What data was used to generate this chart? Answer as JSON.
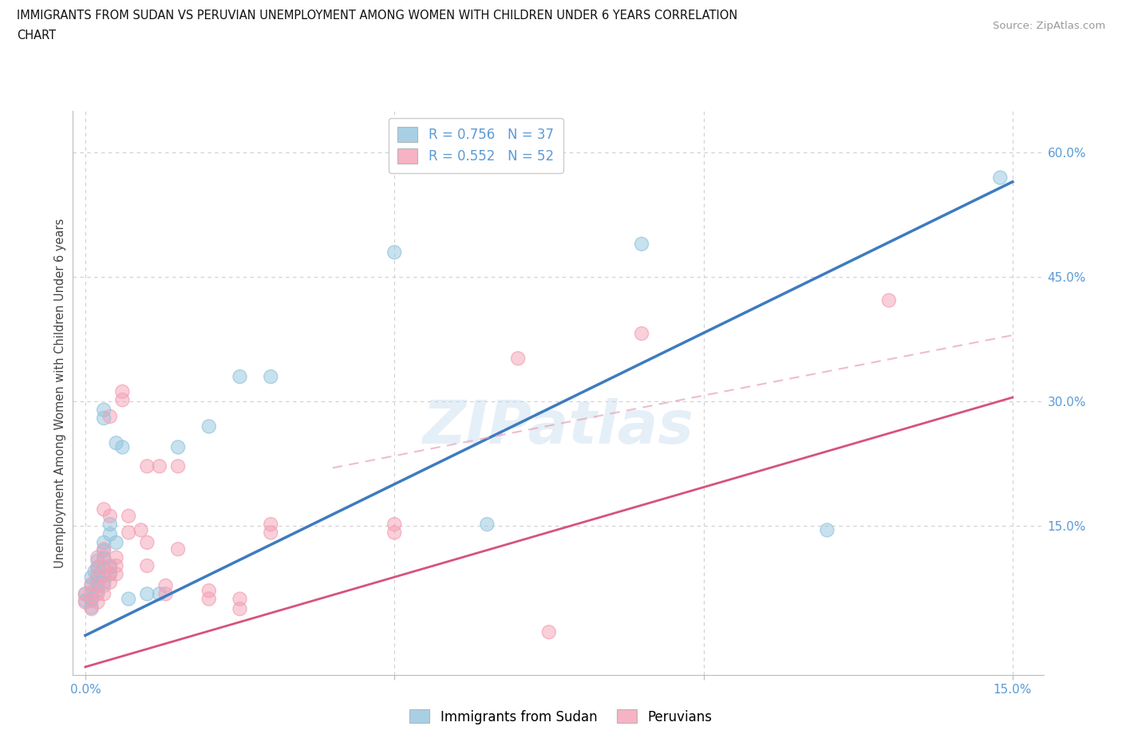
{
  "title_line1": "IMMIGRANTS FROM SUDAN VS PERUVIAN UNEMPLOYMENT AMONG WOMEN WITH CHILDREN UNDER 6 YEARS CORRELATION",
  "title_line2": "CHART",
  "source": "Source: ZipAtlas.com",
  "ylabel": "Unemployment Among Women with Children Under 6 years",
  "xlim": [
    -0.002,
    0.155
  ],
  "ylim": [
    -0.03,
    0.65
  ],
  "watermark": "ZIPatlas",
  "legend_r1": "R = 0.756   N = 37",
  "legend_r2": "R = 0.552   N = 52",
  "blue_color": "#92c5de",
  "pink_color": "#f4a0b5",
  "blue_line_color": "#3d7bbf",
  "pink_line_color": "#d6537a",
  "pink_dash_color": "#e8a0b8",
  "label_color": "#5b9bd5",
  "grid_color": "#d0d0d0",
  "blue_line": {
    "x0": 0.0,
    "y0": 0.018,
    "x1": 0.15,
    "y1": 0.565
  },
  "pink_line": {
    "x0": 0.0,
    "y0": -0.02,
    "x1": 0.15,
    "y1": 0.305
  },
  "pink_dash_line": {
    "x0": 0.04,
    "y0": 0.22,
    "x1": 0.15,
    "y1": 0.38
  },
  "ytick_vals": [
    0.15,
    0.3,
    0.45,
    0.6
  ],
  "ytick_labels": [
    "15.0%",
    "30.0%",
    "45.0%",
    "60.0%"
  ],
  "xtick_vals": [
    0.0,
    0.05,
    0.1,
    0.15
  ],
  "xtick_edge_labels": [
    "0.0%",
    "15.0%"
  ],
  "sudan_points": [
    [
      0.0,
      0.068
    ],
    [
      0.0,
      0.06
    ],
    [
      0.001,
      0.052
    ],
    [
      0.001,
      0.062
    ],
    [
      0.001,
      0.078
    ],
    [
      0.001,
      0.088
    ],
    [
      0.0015,
      0.095
    ],
    [
      0.002,
      0.072
    ],
    [
      0.002,
      0.082
    ],
    [
      0.002,
      0.09
    ],
    [
      0.002,
      0.1
    ],
    [
      0.002,
      0.108
    ],
    [
      0.003,
      0.082
    ],
    [
      0.003,
      0.11
    ],
    [
      0.003,
      0.12
    ],
    [
      0.003,
      0.13
    ],
    [
      0.003,
      0.28
    ],
    [
      0.003,
      0.29
    ],
    [
      0.004,
      0.092
    ],
    [
      0.004,
      0.1
    ],
    [
      0.004,
      0.14
    ],
    [
      0.004,
      0.152
    ],
    [
      0.005,
      0.13
    ],
    [
      0.005,
      0.25
    ],
    [
      0.006,
      0.245
    ],
    [
      0.007,
      0.062
    ],
    [
      0.01,
      0.068
    ],
    [
      0.012,
      0.068
    ],
    [
      0.015,
      0.245
    ],
    [
      0.02,
      0.27
    ],
    [
      0.025,
      0.33
    ],
    [
      0.03,
      0.33
    ],
    [
      0.05,
      0.48
    ],
    [
      0.065,
      0.152
    ],
    [
      0.09,
      0.49
    ],
    [
      0.12,
      0.145
    ],
    [
      0.148,
      0.57
    ]
  ],
  "peruvian_points": [
    [
      0.0,
      0.068
    ],
    [
      0.0,
      0.058
    ],
    [
      0.001,
      0.05
    ],
    [
      0.001,
      0.06
    ],
    [
      0.001,
      0.07
    ],
    [
      0.001,
      0.08
    ],
    [
      0.002,
      0.058
    ],
    [
      0.002,
      0.068
    ],
    [
      0.002,
      0.078
    ],
    [
      0.002,
      0.09
    ],
    [
      0.002,
      0.1
    ],
    [
      0.002,
      0.112
    ],
    [
      0.003,
      0.068
    ],
    [
      0.003,
      0.078
    ],
    [
      0.003,
      0.09
    ],
    [
      0.003,
      0.1
    ],
    [
      0.003,
      0.112
    ],
    [
      0.003,
      0.122
    ],
    [
      0.003,
      0.17
    ],
    [
      0.004,
      0.082
    ],
    [
      0.004,
      0.092
    ],
    [
      0.004,
      0.102
    ],
    [
      0.004,
      0.162
    ],
    [
      0.004,
      0.282
    ],
    [
      0.005,
      0.092
    ],
    [
      0.005,
      0.102
    ],
    [
      0.005,
      0.112
    ],
    [
      0.006,
      0.302
    ],
    [
      0.006,
      0.312
    ],
    [
      0.007,
      0.142
    ],
    [
      0.007,
      0.162
    ],
    [
      0.009,
      0.145
    ],
    [
      0.01,
      0.102
    ],
    [
      0.01,
      0.13
    ],
    [
      0.01,
      0.222
    ],
    [
      0.012,
      0.222
    ],
    [
      0.013,
      0.068
    ],
    [
      0.013,
      0.078
    ],
    [
      0.015,
      0.122
    ],
    [
      0.015,
      0.222
    ],
    [
      0.02,
      0.062
    ],
    [
      0.02,
      0.072
    ],
    [
      0.025,
      0.05
    ],
    [
      0.025,
      0.062
    ],
    [
      0.03,
      0.142
    ],
    [
      0.03,
      0.152
    ],
    [
      0.05,
      0.142
    ],
    [
      0.05,
      0.152
    ],
    [
      0.07,
      0.352
    ],
    [
      0.075,
      0.022
    ],
    [
      0.09,
      0.382
    ],
    [
      0.13,
      0.422
    ]
  ]
}
